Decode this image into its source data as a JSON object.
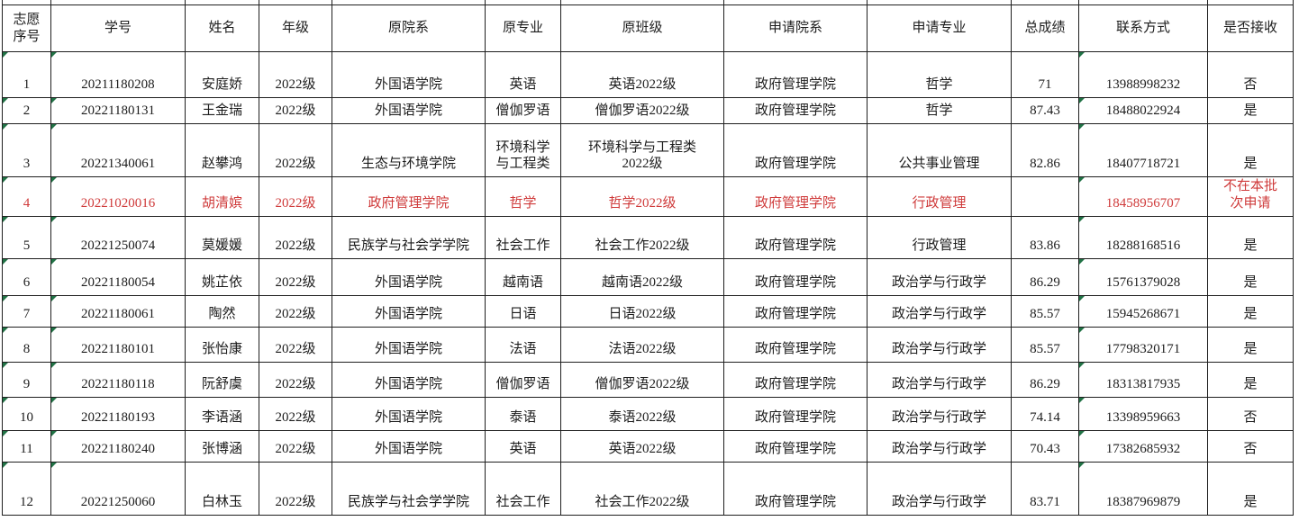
{
  "colors": {
    "grid_border": "#1f1f1f",
    "highlight_red": "#cf3a3a",
    "error_indicator_green": "#217346",
    "background": "#ffffff",
    "text": "#1c1c1c"
  },
  "table": {
    "headers": [
      "志愿\n序号",
      "学号",
      "姓名",
      "年级",
      "原院系",
      "原专业",
      "原班级",
      "申请院系",
      "申请专业",
      "总成绩",
      "联系方式",
      "是否接收"
    ],
    "rows": [
      {
        "red": false,
        "cells": [
          "1",
          "20211180208",
          "安庭娇",
          "2022级",
          "外国语学院",
          "英语",
          "英语2022级",
          "政府管理学院",
          "哲学",
          "71",
          "13988998232",
          "否"
        ]
      },
      {
        "red": false,
        "cells": [
          "2",
          "20221180131",
          "王金瑞",
          "2022级",
          "外国语学院",
          "僧伽罗语",
          "僧伽罗语2022级",
          "政府管理学院",
          "哲学",
          "87.43",
          "18488022924",
          "是"
        ]
      },
      {
        "red": false,
        "cells": [
          "3",
          "20221340061",
          "赵攀鸿",
          "2022级",
          "生态与环境学院",
          "环境科学\n与工程类",
          "环境科学与工程类\n2022级",
          "政府管理学院",
          "公共事业管理",
          "82.86",
          "18407718721",
          "是"
        ]
      },
      {
        "red": true,
        "cells": [
          "4",
          "20221020016",
          "胡清嫔",
          "2022级",
          "政府管理学院",
          "哲学",
          "哲学2022级",
          "政府管理学院",
          "行政管理",
          "",
          "18458956707",
          "不在本批\n次申请"
        ]
      },
      {
        "red": false,
        "cells": [
          "5",
          "20221250074",
          "莫媛媛",
          "2022级",
          "民族学与社会学学院",
          "社会工作",
          "社会工作2022级",
          "政府管理学院",
          "行政管理",
          "83.86",
          "18288168516",
          "是"
        ]
      },
      {
        "red": false,
        "cells": [
          "6",
          "20221180054",
          "姚芷依",
          "2022级",
          "外国语学院",
          "越南语",
          "越南语2022级",
          "政府管理学院",
          "政治学与行政学",
          "86.29",
          "15761379028",
          "是"
        ]
      },
      {
        "red": false,
        "cells": [
          "7",
          "20221180061",
          "陶然",
          "2022级",
          "外国语学院",
          "日语",
          "日语2022级",
          "政府管理学院",
          "政治学与行政学",
          "85.57",
          "15945268671",
          "是"
        ]
      },
      {
        "red": false,
        "cells": [
          "8",
          "20221180101",
          "张怡康",
          "2022级",
          "外国语学院",
          "法语",
          "法语2022级",
          "政府管理学院",
          "政治学与行政学",
          "85.57",
          "17798320171",
          "是"
        ]
      },
      {
        "red": false,
        "cells": [
          "9",
          "20221180118",
          "阮舒虞",
          "2022级",
          "外国语学院",
          "僧伽罗语",
          "僧伽罗语2022级",
          "政府管理学院",
          "政治学与行政学",
          "86.29",
          "18313817935",
          "是"
        ]
      },
      {
        "red": false,
        "cells": [
          "10",
          "20221180193",
          "李语涵",
          "2022级",
          "外国语学院",
          "泰语",
          "泰语2022级",
          "政府管理学院",
          "政治学与行政学",
          "74.14",
          "13398959663",
          "否"
        ]
      },
      {
        "red": false,
        "cells": [
          "11",
          "20221180240",
          "张博涵",
          "2022级",
          "外国语学院",
          "英语",
          "英语2022级",
          "政府管理学院",
          "政治学与行政学",
          "70.43",
          "17382685932",
          "否"
        ]
      },
      {
        "red": false,
        "cells": [
          "12",
          "20221250060",
          "白林玉",
          "2022级",
          "民族学与社会学学院",
          "社会工作",
          "社会工作2022级",
          "政府管理学院",
          "政治学与行政学",
          "83.71",
          "18387969879",
          "是"
        ]
      }
    ]
  },
  "indicators": {
    "error_triangle_columns": [
      0,
      1,
      10
    ]
  }
}
